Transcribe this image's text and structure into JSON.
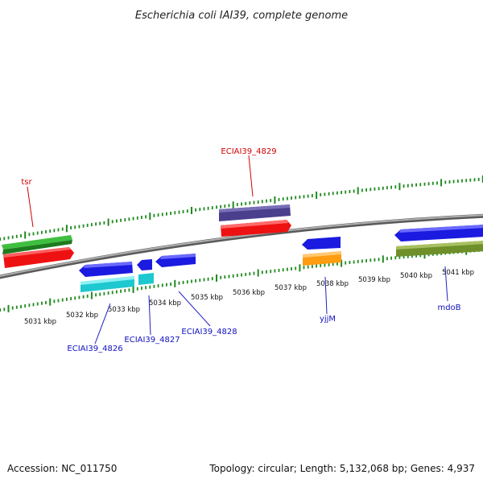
{
  "title": "Escherichia coli IAI39, complete genome",
  "footer": {
    "accession": "Accession: NC_011750",
    "summary": "Topology: circular; Length: 5,132,068 bp; Genes: 4,937"
  },
  "colors": {
    "backbone": "#8c8c8c",
    "tick": "#1f8a1f",
    "label_red": "#d40000",
    "label_blue": "#1010c0",
    "leader_red": "#d40000",
    "leader_blue": "#2020c0"
  },
  "kbp_labels": [
    "5031 kbp",
    "5032 kbp",
    "5033 kbp",
    "5034 kbp",
    "5035 kbp",
    "5036 kbp",
    "5037 kbp",
    "5038 kbp",
    "5039 kbp",
    "5040 kbp",
    "5041 kbp"
  ],
  "gene_labels": [
    {
      "text": "tsr",
      "color": "red"
    },
    {
      "text": "ECIAI39_4829",
      "color": "red"
    },
    {
      "text": "ECIAI39_4826",
      "color": "blue"
    },
    {
      "text": "ECIAI39_4827",
      "color": "blue"
    },
    {
      "text": "ECIAI39_4828",
      "color": "blue"
    },
    {
      "text": "yjjM",
      "color": "blue"
    },
    {
      "text": "mdoB",
      "color": "blue"
    }
  ],
  "features": [
    {
      "name": "feature-green-top",
      "color": "#3fbf3f"
    },
    {
      "name": "feature-red-tsr",
      "color": "#ee1111"
    },
    {
      "name": "feature-purple",
      "color": "#4a3f8c"
    },
    {
      "name": "feature-red-4829",
      "color": "#ee1111"
    },
    {
      "name": "feature-blue-4826",
      "color": "#1a1ae0"
    },
    {
      "name": "feature-cyan-4826",
      "color": "#1ec8d0"
    },
    {
      "name": "feature-blue-4827",
      "color": "#1a1ae0"
    },
    {
      "name": "feature-cyan-4827",
      "color": "#1ec8d0"
    },
    {
      "name": "feature-blue-4828",
      "color": "#1a1ae0"
    },
    {
      "name": "feature-blue-yjjm",
      "color": "#1a1ae0"
    },
    {
      "name": "feature-orange-yjjm",
      "color": "#ff9c10"
    },
    {
      "name": "feature-blue-mdob",
      "color": "#1a1ae0"
    },
    {
      "name": "feature-olive-mdob",
      "color": "#6f8f2a"
    }
  ]
}
